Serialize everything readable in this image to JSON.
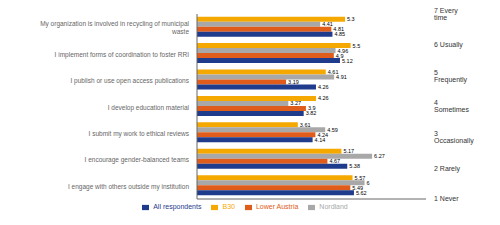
{
  "chart_data": {
    "type": "bar",
    "orientation": "horizontal",
    "categories": [
      "My organization is involved in recycling of municipal\nwaste",
      "I implement forms of coordination to foster RRI",
      "I publish or use open access publications",
      "I develop education material",
      "I submit my work to ethical reviews",
      "I encourage gender-balanced teams",
      "I engage with others outside my institution"
    ],
    "series": [
      {
        "name": "B30",
        "color": "#F5A800",
        "values": [
          5.3,
          5.5,
          4.61,
          4.26,
          3.61,
          5.17,
          5.57
        ]
      },
      {
        "name": "Nordland",
        "color": "#A8A8A8",
        "values": [
          4.41,
          4.96,
          4.91,
          3.27,
          4.59,
          6.27,
          6.0
        ]
      },
      {
        "name": "Lower Austria",
        "color": "#E05C1A",
        "values": [
          4.81,
          4.9,
          3.19,
          3.9,
          4.24,
          4.67,
          5.49
        ]
      },
      {
        "name": "All respondents",
        "color": "#1F3B8C",
        "values": [
          4.85,
          5.12,
          4.26,
          3.82,
          4.14,
          5.38,
          5.62
        ]
      }
    ],
    "xlim": [
      0,
      8.2
    ],
    "data_labels": true,
    "tick_labels": "y",
    "legend": "bottom",
    "annotations": [
      "1 Never",
      "2 Rarely",
      "3 Occasionally",
      "4 Sometimes",
      "5 Frequently",
      "6 Usually",
      "7 Every time"
    ]
  }
}
